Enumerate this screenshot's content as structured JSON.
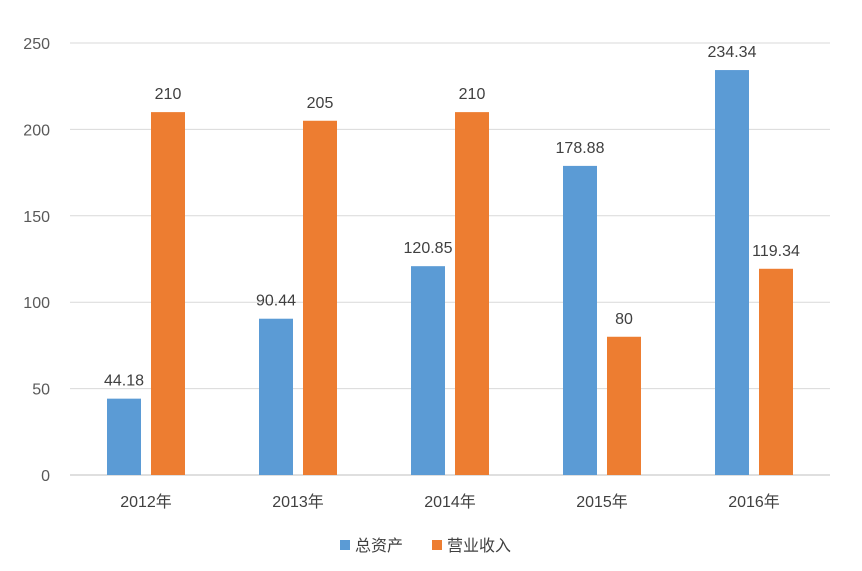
{
  "chart_data": {
    "type": "bar",
    "title": "",
    "xlabel": "",
    "ylabel": "",
    "ylim": [
      0,
      250
    ],
    "yticks": [
      0,
      50,
      100,
      150,
      200,
      250
    ],
    "grid": true,
    "legend_position": "bottom",
    "categories": [
      "2012年",
      "2013年",
      "2014年",
      "2015年",
      "2016年"
    ],
    "series": [
      {
        "name": "总资产",
        "color": "#5B9BD5",
        "values": [
          44.18,
          90.44,
          120.85,
          178.88,
          234.34
        ],
        "labels": [
          "44.18",
          "90.44",
          "120.85",
          "178.88",
          "234.34"
        ]
      },
      {
        "name": "营业收入",
        "color": "#ED7D31",
        "values": [
          210,
          205,
          210,
          80,
          119.34
        ],
        "labels": [
          "210",
          "205",
          "210",
          "80",
          "119.34"
        ]
      }
    ]
  }
}
